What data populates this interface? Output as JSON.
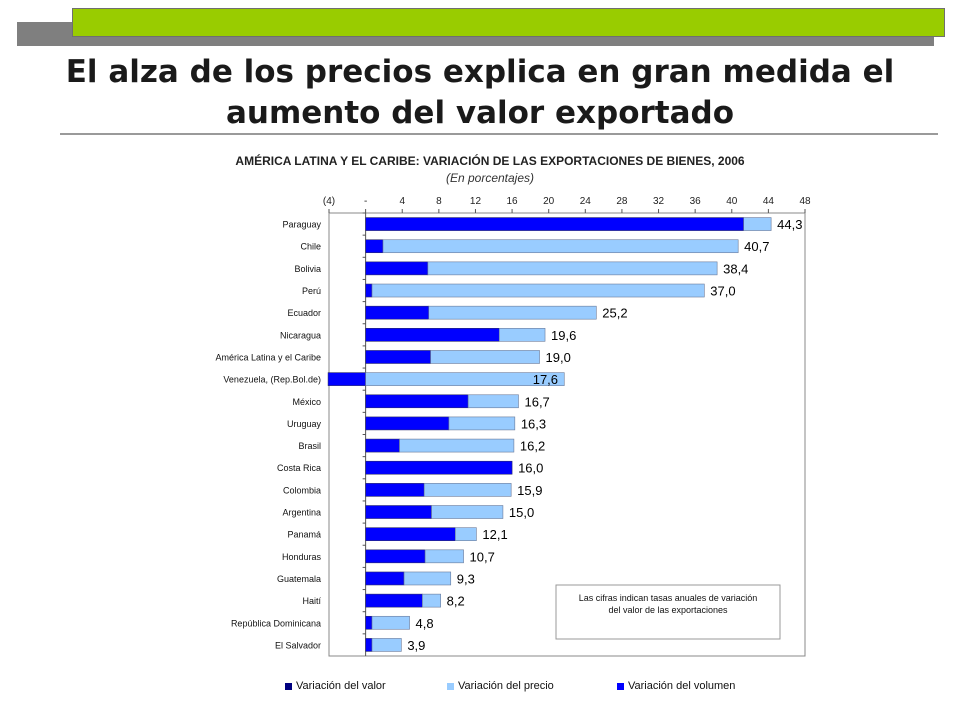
{
  "slide": {
    "title_line1": "El alza de los precios explica en gran medida el",
    "title_line2": "aumento del valor exportado"
  },
  "colors": {
    "valor": "#000080",
    "precio": "#99ccff",
    "volumen": "#0000ff",
    "accent_bar": "#99cc00"
  },
  "chart_data": {
    "type": "bar",
    "orientation": "horizontal",
    "title": "AMÉRICA LATINA Y EL CARIBE: VARIACIÓN DE LAS EXPORTACIONES DE BIENES, 2006",
    "subtitle": "(En porcentajes)",
    "xlim": [
      -4,
      48
    ],
    "x_ticks": [
      -4,
      0,
      4,
      8,
      12,
      16,
      20,
      24,
      28,
      32,
      36,
      40,
      44,
      48
    ],
    "x_tick_labels": [
      "(4)",
      "-",
      "4",
      "8",
      "12",
      "16",
      "20",
      "24",
      "28",
      "32",
      "36",
      "40",
      "44",
      "48"
    ],
    "categories": [
      "Paraguay",
      "Chile",
      "Bolivia",
      "Perú",
      "Ecuador",
      "Nicaragua",
      "América Latina y el Caribe",
      "Venezuela, (Rep.Bol.de)",
      "México",
      "Uruguay",
      "Brasil",
      "Costa Rica",
      "Colombia",
      "Argentina",
      "Panamá",
      "Honduras",
      "Guatemala",
      "Haití",
      "República Dominicana",
      "El Salvador"
    ],
    "series": [
      {
        "name": "Variación del valor",
        "values": [
          44.3,
          40.7,
          38.4,
          37.0,
          25.2,
          19.6,
          19.0,
          17.6,
          16.7,
          16.3,
          16.2,
          16.0,
          15.9,
          15.0,
          12.1,
          10.7,
          9.3,
          8.2,
          4.8,
          3.9
        ]
      },
      {
        "name": "Variación del precio",
        "values": [
          3.0,
          38.8,
          31.6,
          36.3,
          18.3,
          5.0,
          11.9,
          21.7,
          5.5,
          7.2,
          12.5,
          0.0,
          9.5,
          7.8,
          2.3,
          4.2,
          5.1,
          2.0,
          4.1,
          3.2
        ]
      },
      {
        "name": "Variación del volumen",
        "values": [
          41.3,
          1.9,
          6.8,
          0.7,
          6.9,
          14.6,
          7.1,
          -4.1,
          11.2,
          9.1,
          3.7,
          16.0,
          6.4,
          7.2,
          9.8,
          6.5,
          4.2,
          6.2,
          0.7,
          0.7
        ]
      }
    ],
    "value_labels": [
      "44,3",
      "40,7",
      "38,4",
      "37,0",
      "25,2",
      "19,6",
      "19,0",
      "17,6",
      "16,7",
      "16,3",
      "16,2",
      "16,0",
      "15,9",
      "15,0",
      "12,1",
      "10,7",
      "9,3",
      "8,2",
      "4,8",
      "3,9"
    ],
    "annotation": [
      "Las cifras indican tasas anuales de variación",
      "del valor de las exportaciones"
    ],
    "legend_position": "bottom"
  }
}
